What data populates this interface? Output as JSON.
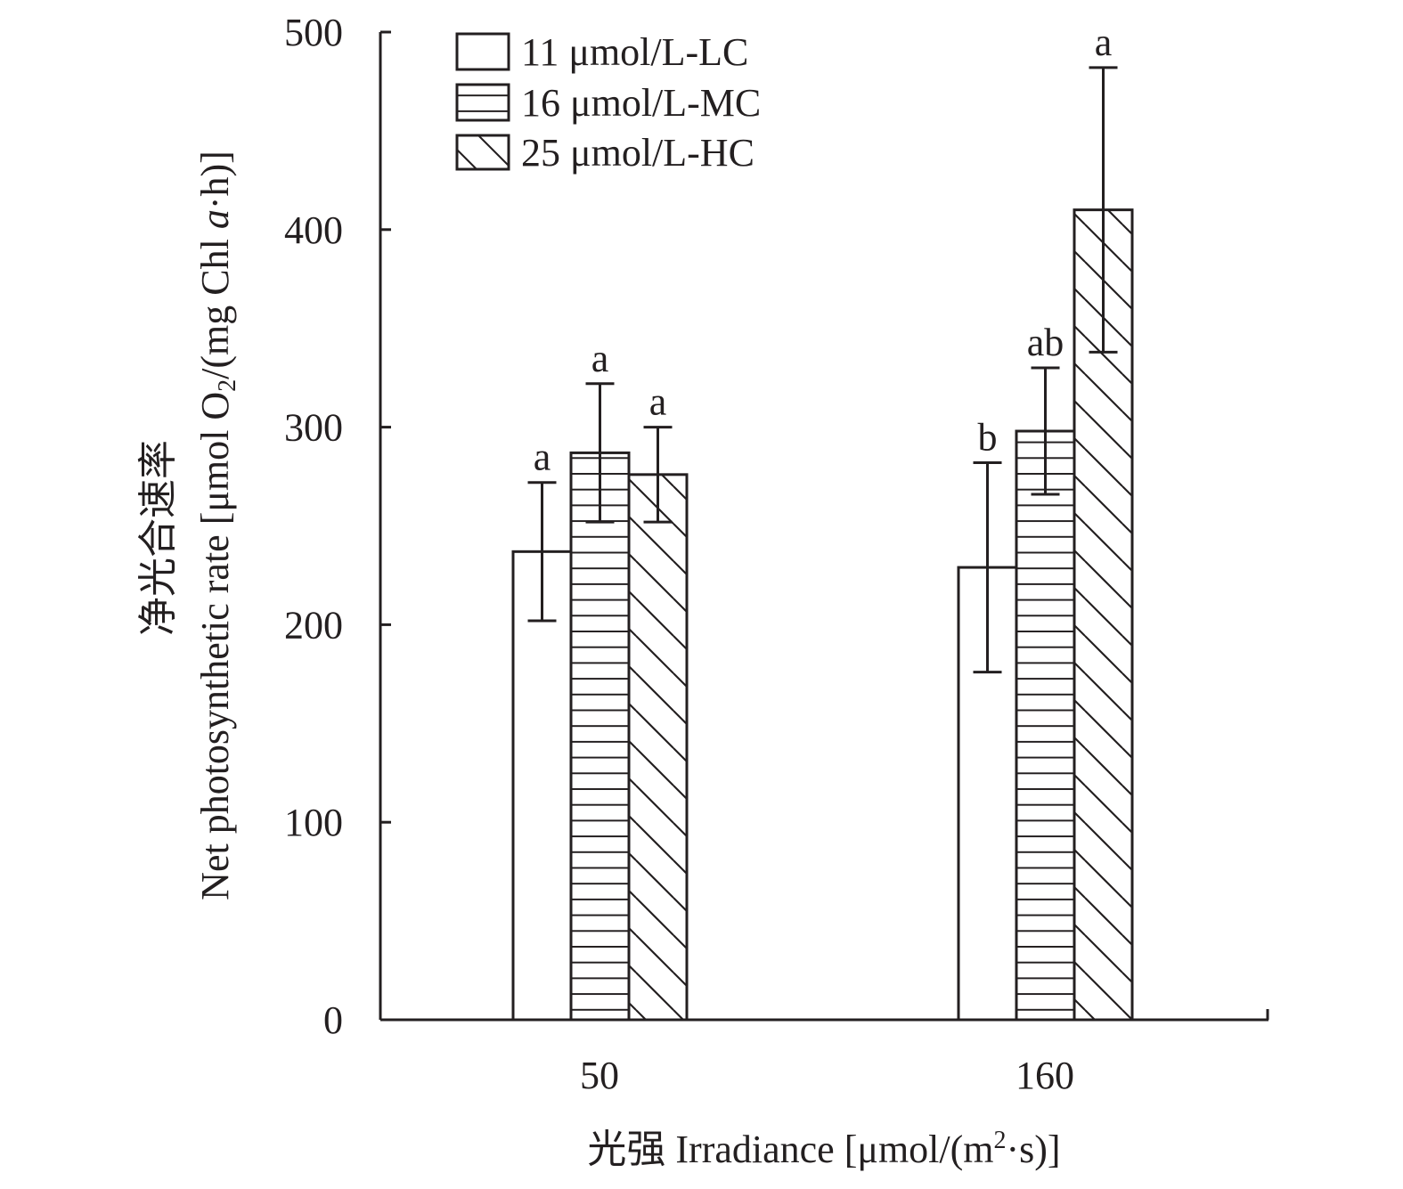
{
  "chart_data": {
    "type": "bar",
    "title": "",
    "xlabel": "光强 Irradiance [μmol/(m²·s)]",
    "xlabel_parts": {
      "cn": "光强",
      "en": "Irradiance",
      "unit_pre": "[μmol/(m",
      "unit_sup": "2",
      "unit_post": "·s)]"
    },
    "ylabel_line1": "净光合速率",
    "ylabel_line2_parts": {
      "pre": "Net photosynthetic rate [μmol O",
      "sub": "2",
      "mid": "/(mg Chl ",
      "ital": "a",
      "post": "·h)]"
    },
    "categories": [
      "50",
      "160"
    ],
    "ylim": [
      0,
      500
    ],
    "yticks": [
      0,
      100,
      200,
      300,
      400,
      500
    ],
    "ytick_labels": [
      "0",
      "100",
      "200",
      "300",
      "400",
      "500"
    ],
    "grid": false,
    "legend_position": "top-left",
    "series": [
      {
        "name": "11 μmol/L-LC",
        "pattern": "none",
        "values": [
          237,
          229
        ],
        "errors": [
          35,
          53
        ],
        "letters": [
          "a",
          "b"
        ]
      },
      {
        "name": "16 μmol/L-MC",
        "pattern": "horizontal",
        "values": [
          287,
          298
        ],
        "errors": [
          35,
          32
        ],
        "letters": [
          "a",
          "ab"
        ]
      },
      {
        "name": "25 μmol/L-HC",
        "pattern": "diagonal",
        "values": [
          276,
          410
        ],
        "errors": [
          24,
          72
        ],
        "letters": [
          "a",
          "a"
        ]
      }
    ],
    "colors": {
      "ink": "#231f20",
      "background": "#ffffff"
    }
  }
}
